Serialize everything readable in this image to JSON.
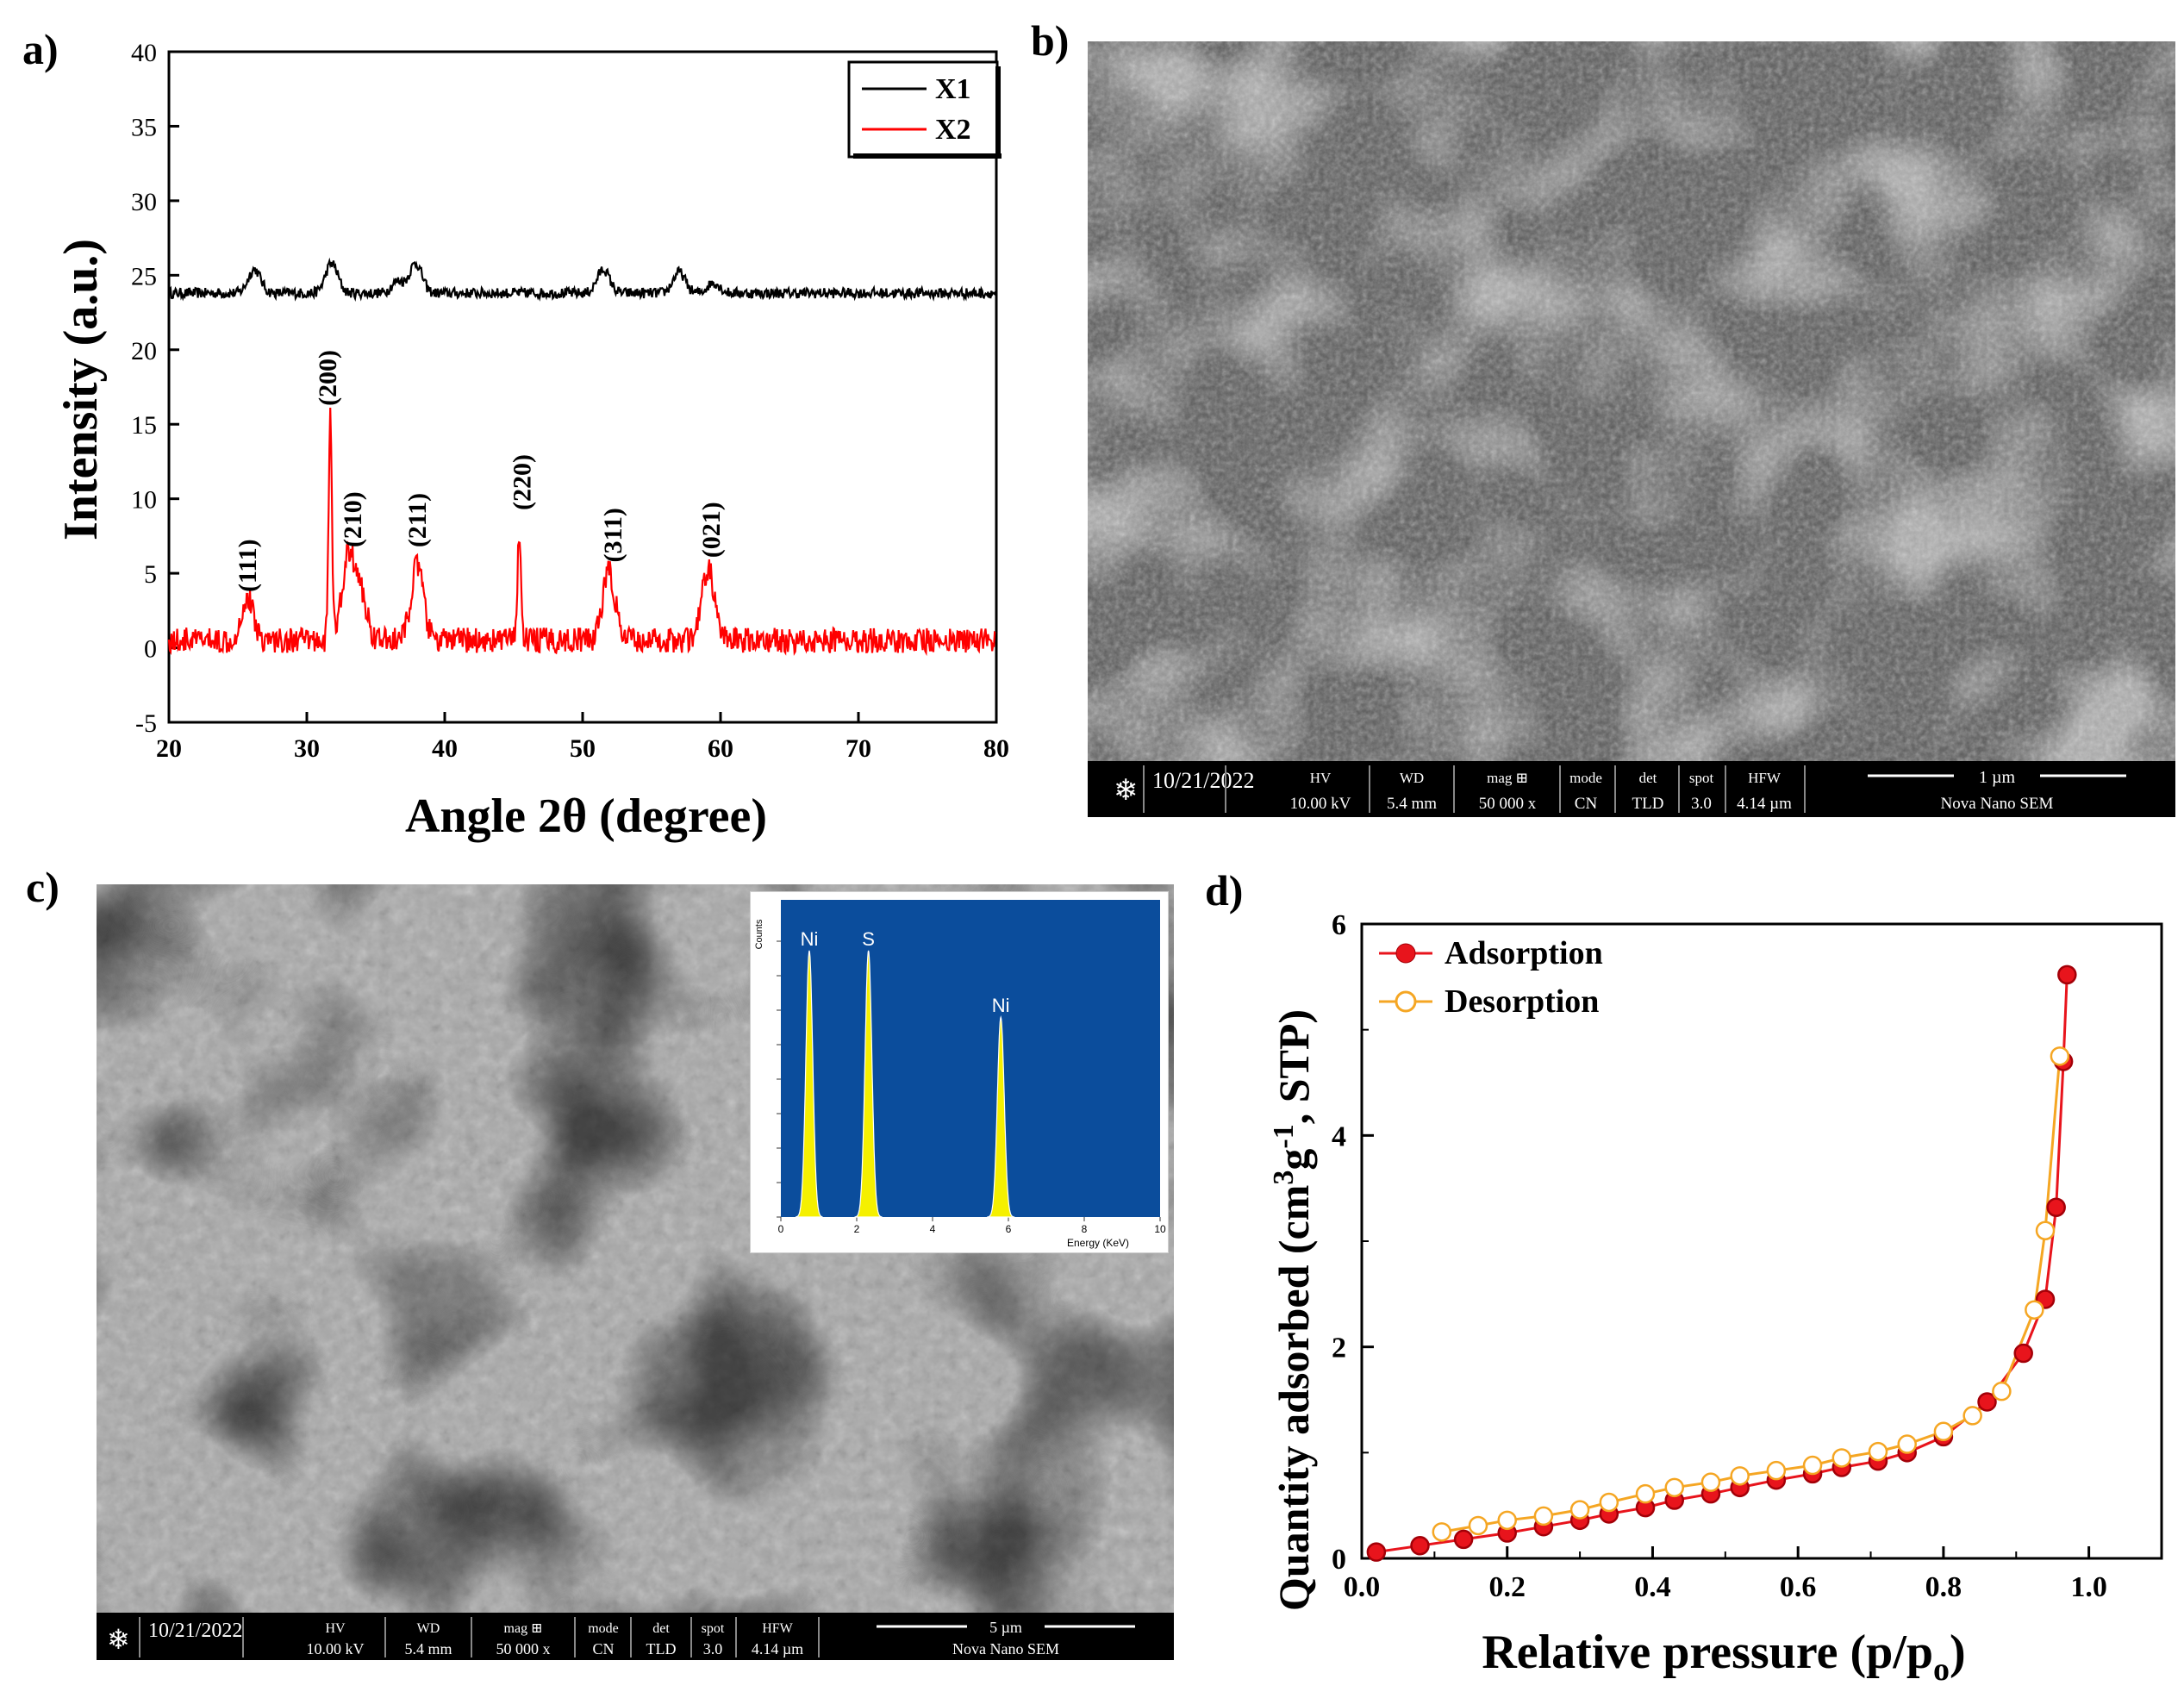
{
  "panels": {
    "a": "a)",
    "b": "b)",
    "c": "c)",
    "d": "d)"
  },
  "sem_b": {
    "date": "10/21/2022",
    "hv_label": "HV",
    "hv_value": "10.00 kV",
    "wd_label": "WD",
    "wd_value": "5.4 mm",
    "mag_label": "mag ⊞",
    "mag_value": "50 000 x",
    "mode_label": "mode",
    "mode_value": "CN",
    "det_label": "det",
    "det_value": "TLD",
    "spot_label": "spot",
    "spot_value": "3.0",
    "hfw_label": "HFW",
    "hfw_value": "4.14 µm",
    "scale_label": "1 µm",
    "instrument": "Nova Nano SEM"
  },
  "sem_c": {
    "date": "10/21/2022",
    "hv_label": "HV",
    "hv_value": "10.00 kV",
    "wd_label": "WD",
    "wd_value": "5.4 mm",
    "mag_label": "mag ⊞",
    "mag_value": "50 000 x",
    "mode_label": "mode",
    "mode_value": "CN",
    "det_label": "det",
    "det_value": "TLD",
    "spot_label": "spot",
    "spot_value": "3.0",
    "hfw_label": "HFW",
    "hfw_value": "4.14 µm",
    "scale_label": "5 µm",
    "instrument": "Nova Nano SEM"
  },
  "colors": {
    "x1": "#000000",
    "x2": "#ff0000",
    "adsorption": "#e8141c",
    "desorption": "#f5a623",
    "eds_bg": "#0b4d9c",
    "eds_peak": "#f5f000"
  },
  "chart_data": [
    {
      "id": "xrd",
      "type": "line",
      "xlabel": "Angle 2θ (degree)",
      "ylabel": "Intensity (a.u.)",
      "xlim": [
        20,
        80
      ],
      "ylim": [
        -5,
        40
      ],
      "xticks": [
        20,
        30,
        40,
        50,
        60,
        70,
        80
      ],
      "yticks": [
        -5,
        0,
        5,
        10,
        15,
        20,
        25,
        30,
        35,
        40
      ],
      "legend": [
        "X1",
        "X2"
      ],
      "legend_position": "top-right",
      "series": [
        {
          "name": "X1",
          "baseline": 23.8,
          "peaks": [
            [
              26.2,
              1.6
            ],
            [
              31.8,
              2.0
            ],
            [
              36.6,
              0.8
            ],
            [
              37.9,
              2.0
            ],
            [
              51.5,
              1.6
            ],
            [
              57.0,
              1.4
            ],
            [
              59.5,
              0.7
            ]
          ]
        },
        {
          "name": "X2",
          "baseline": 0.5,
          "peaks": [
            [
              25.7,
              2.8
            ],
            [
              31.7,
              15.0
            ],
            [
              33.0,
              5.5
            ],
            [
              33.9,
              3.0
            ],
            [
              38.0,
              5.0
            ],
            [
              45.4,
              7.5
            ],
            [
              51.9,
              4.6
            ],
            [
              59.1,
              4.8
            ]
          ]
        }
      ],
      "annotations": [
        {
          "text": "(111)",
          "x": 25.7,
          "y": 3.5
        },
        {
          "text": "(200)",
          "x": 31.5,
          "y": 16.0
        },
        {
          "text": "(210)",
          "x": 33.3,
          "y": 6.5
        },
        {
          "text": "(211)",
          "x": 38.0,
          "y": 6.5
        },
        {
          "text": "(220)",
          "x": 45.6,
          "y": 9.0
        },
        {
          "text": "(311)",
          "x": 52.2,
          "y": 5.5
        },
        {
          "text": "(021)",
          "x": 59.3,
          "y": 5.8
        }
      ]
    },
    {
      "id": "eds",
      "type": "line",
      "xlabel": "Energy (KeV)",
      "ylabel": "Counts",
      "xlim": [
        0,
        10
      ],
      "ylim": [
        0,
        1
      ],
      "xticks": [
        0,
        2,
        4,
        6,
        8,
        10
      ],
      "peaks": [
        {
          "label": "Ni",
          "energy": 0.75,
          "height": 0.84
        },
        {
          "label": "S",
          "energy": 2.31,
          "height": 0.84
        },
        {
          "label": "Ni",
          "energy": 5.8,
          "height": 0.63
        }
      ]
    },
    {
      "id": "bet",
      "type": "line",
      "xlabel": "Relative pressure (p/p",
      "xlabel_sub": "o",
      "xlabel_end": ")",
      "ylabel": "Quantity adsorbed (cm",
      "ylabel_sup1": "3",
      "ylabel_mid": "g",
      "ylabel_sup2": "-1",
      "ylabel_end": ", STP)",
      "xlim": [
        0.0,
        1.1
      ],
      "ylim": [
        0,
        6
      ],
      "xticks": [
        "0.0",
        "0.2",
        "0.4",
        "0.6",
        "0.8",
        "1.0"
      ],
      "yticks": [
        "0",
        "2",
        "4",
        "6"
      ],
      "legend_position": "top-left",
      "series": [
        {
          "name": "Adsorption",
          "x": [
            0.02,
            0.08,
            0.14,
            0.2,
            0.25,
            0.3,
            0.34,
            0.39,
            0.43,
            0.48,
            0.52,
            0.57,
            0.62,
            0.66,
            0.71,
            0.75,
            0.8,
            0.86,
            0.91,
            0.94,
            0.955,
            0.965,
            0.97
          ],
          "y": [
            0.06,
            0.12,
            0.18,
            0.24,
            0.3,
            0.36,
            0.42,
            0.48,
            0.55,
            0.61,
            0.67,
            0.74,
            0.8,
            0.86,
            0.92,
            1.0,
            1.15,
            1.48,
            1.94,
            2.45,
            3.32,
            4.7,
            5.52
          ]
        },
        {
          "name": "Desorption",
          "x": [
            0.96,
            0.94,
            0.925,
            0.88,
            0.84,
            0.8,
            0.75,
            0.71,
            0.66,
            0.62,
            0.57,
            0.52,
            0.48,
            0.43,
            0.39,
            0.34,
            0.3,
            0.25,
            0.2,
            0.16,
            0.11
          ],
          "y": [
            4.75,
            3.1,
            2.35,
            1.58,
            1.35,
            1.2,
            1.08,
            1.01,
            0.95,
            0.88,
            0.83,
            0.78,
            0.72,
            0.67,
            0.61,
            0.53,
            0.46,
            0.4,
            0.36,
            0.31,
            0.25
          ]
        }
      ]
    }
  ]
}
